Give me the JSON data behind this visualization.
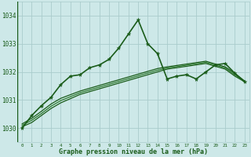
{
  "title": "Graphe pression niveau de la mer (hPa)",
  "background_color": "#cde8e8",
  "grid_color": "#aacccc",
  "line_color_dark": "#1a5c1a",
  "line_color_mid": "#2d7a2d",
  "xlim": [
    -0.5,
    23.5
  ],
  "ylim": [
    1029.5,
    1034.5
  ],
  "yticks": [
    1030,
    1031,
    1032,
    1033,
    1034
  ],
  "xticks": [
    0,
    1,
    2,
    3,
    4,
    5,
    6,
    7,
    8,
    9,
    10,
    11,
    12,
    13,
    14,
    15,
    16,
    17,
    18,
    19,
    20,
    21,
    22,
    23
  ],
  "series_main": {
    "x": [
      0,
      1,
      2,
      3,
      4,
      5,
      6,
      7,
      8,
      9,
      10,
      11,
      12,
      13,
      14,
      15,
      16,
      17,
      18,
      19,
      20,
      21,
      22,
      23
    ],
    "y": [
      1030.0,
      1030.45,
      1030.8,
      1031.1,
      1031.55,
      1031.85,
      1031.9,
      1032.15,
      1032.25,
      1032.45,
      1032.85,
      1033.35,
      1033.85,
      1033.0,
      1032.65,
      1031.75,
      1031.85,
      1031.9,
      1031.75,
      1032.0,
      1032.25,
      1032.3,
      1031.95,
      1031.65
    ],
    "color": "#1a5c1a",
    "lw": 1.2,
    "marker": "*",
    "ms": 3.5
  },
  "series_smooth": [
    {
      "x": [
        0,
        1,
        2,
        3,
        4,
        5,
        6,
        7,
        8,
        9,
        10,
        11,
        12,
        13,
        14,
        15,
        16,
        17,
        18,
        19,
        20,
        21,
        22,
        23
      ],
      "y": [
        1030.05,
        1030.2,
        1030.45,
        1030.7,
        1030.9,
        1031.05,
        1031.2,
        1031.3,
        1031.4,
        1031.5,
        1031.6,
        1031.7,
        1031.8,
        1031.9,
        1032.0,
        1032.1,
        1032.15,
        1032.2,
        1032.25,
        1032.3,
        1032.2,
        1032.1,
        1031.85,
        1031.65
      ],
      "color": "#1a5c1a",
      "lw": 0.9
    },
    {
      "x": [
        0,
        1,
        2,
        3,
        4,
        5,
        6,
        7,
        8,
        9,
        10,
        11,
        12,
        13,
        14,
        15,
        16,
        17,
        18,
        19,
        20,
        21,
        22,
        23
      ],
      "y": [
        1030.1,
        1030.28,
        1030.52,
        1030.78,
        1030.98,
        1031.12,
        1031.26,
        1031.36,
        1031.46,
        1031.56,
        1031.66,
        1031.76,
        1031.86,
        1031.96,
        1032.06,
        1032.14,
        1032.19,
        1032.24,
        1032.29,
        1032.34,
        1032.24,
        1032.14,
        1031.9,
        1031.65
      ],
      "color": "#2d7a2d",
      "lw": 0.9
    },
    {
      "x": [
        0,
        1,
        2,
        3,
        4,
        5,
        6,
        7,
        8,
        9,
        10,
        11,
        12,
        13,
        14,
        15,
        16,
        17,
        18,
        19,
        20,
        21,
        22,
        23
      ],
      "y": [
        1030.15,
        1030.35,
        1030.6,
        1030.86,
        1031.06,
        1031.19,
        1031.32,
        1031.42,
        1031.52,
        1031.62,
        1031.72,
        1031.82,
        1031.92,
        1032.02,
        1032.12,
        1032.18,
        1032.23,
        1032.28,
        1032.33,
        1032.38,
        1032.28,
        1032.18,
        1031.95,
        1031.68
      ],
      "color": "#1a5c1a",
      "lw": 0.9
    }
  ]
}
